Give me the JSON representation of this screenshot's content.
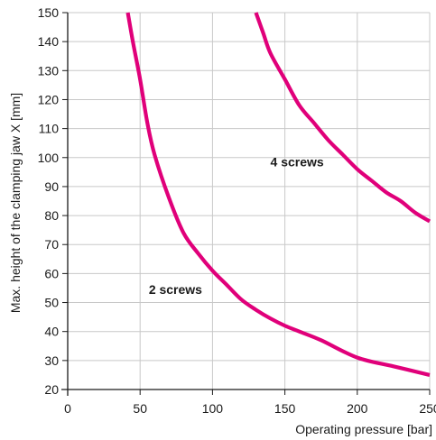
{
  "chart_data": {
    "type": "line",
    "title": "",
    "xlabel": "Operating pressure [bar]",
    "ylabel": "Max. height of the clamping jaw X [mm]",
    "xlim": [
      0,
      250
    ],
    "ylim": [
      20,
      150
    ],
    "xticks": [
      0,
      50,
      100,
      150,
      200,
      250
    ],
    "yticks": [
      20,
      30,
      40,
      50,
      60,
      70,
      80,
      90,
      100,
      110,
      120,
      130,
      140,
      150
    ],
    "grid": true,
    "legend": "none",
    "line_color": "#e0007a",
    "grid_color": "#c8c8c8",
    "series": [
      {
        "name": "2 screws",
        "x": [
          41.5,
          45,
          50,
          55,
          60,
          70,
          80,
          90,
          100,
          110,
          120,
          130,
          140,
          150,
          160,
          175,
          200,
          225,
          250
        ],
        "y": [
          150,
          140,
          127,
          112,
          101,
          86,
          74,
          67,
          61,
          56,
          51,
          47.5,
          44.5,
          42,
          40,
          37,
          31,
          28,
          25
        ]
      },
      {
        "name": "4 screws",
        "x": [
          130,
          135,
          140,
          150,
          160,
          170,
          180,
          190,
          200,
          210,
          220,
          230,
          240,
          250
        ],
        "y": [
          150,
          143,
          136,
          127,
          118,
          112,
          106,
          101,
          96,
          92,
          88,
          85,
          81,
          78
        ]
      }
    ],
    "annotations": [
      {
        "text": "2 screws",
        "x": 56,
        "y": 53
      },
      {
        "text": "4 screws",
        "x": 140,
        "y": 97
      }
    ]
  }
}
